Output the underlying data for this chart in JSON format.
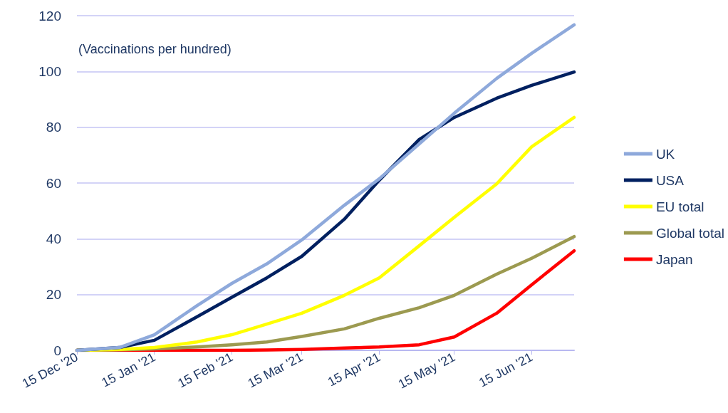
{
  "chart_data": {
    "type": "line",
    "ylabel": "(Vaccinations per hundred)",
    "x": [
      "2020-12-15",
      "2021-01-01",
      "2021-01-15",
      "2021-02-01",
      "2021-02-15",
      "2021-03-01",
      "2021-03-15",
      "2021-04-01",
      "2021-04-15",
      "2021-05-01",
      "2021-05-15",
      "2021-06-01",
      "2021-06-15",
      "2021-07-02"
    ],
    "series": [
      {
        "name": "UK",
        "color": "#8ea9db",
        "values": [
          0,
          1,
          5.6,
          16,
          24,
          31,
          39.6,
          52,
          61.5,
          74,
          85,
          97.5,
          106.5,
          116.7
        ]
      },
      {
        "name": "USA",
        "color": "#002060",
        "values": [
          0,
          1,
          3.6,
          12,
          19,
          26,
          33.7,
          47,
          61,
          75.6,
          83.5,
          90.4,
          95,
          99.8
        ]
      },
      {
        "name": "EU total",
        "color": "#ffff00",
        "values": [
          0,
          0.3,
          1,
          3,
          5.6,
          9.4,
          13.3,
          19.7,
          26,
          37.5,
          47.7,
          59.7,
          73,
          83.5
        ]
      },
      {
        "name": "Global total",
        "color": "#9c9a50",
        "values": [
          0,
          0.2,
          0.5,
          1.2,
          2,
          3,
          5,
          7.7,
          11.5,
          15.3,
          19.7,
          27.3,
          33,
          40.8
        ]
      },
      {
        "name": "Japan",
        "color": "#ff0000",
        "values": [
          0,
          0,
          0,
          0,
          0,
          0.1,
          0.3,
          0.8,
          1.2,
          2,
          4.8,
          13.3,
          23.5,
          35.7
        ]
      }
    ],
    "xlim": [
      "2020-12-15",
      "2021-07-02"
    ],
    "xticks": [
      {
        "value": "2020-12-15",
        "label": "15 Dec '20"
      },
      {
        "value": "2021-01-15",
        "label": "15 Jan '21"
      },
      {
        "value": "2021-02-15",
        "label": "15 Feb '21"
      },
      {
        "value": "2021-03-15",
        "label": "15 Mar '21"
      },
      {
        "value": "2021-04-15",
        "label": "15 Apr '21"
      },
      {
        "value": "2021-05-15",
        "label": "15 May '21"
      },
      {
        "value": "2021-06-15",
        "label": "15 Jun '21"
      }
    ],
    "ylim": [
      0,
      120
    ],
    "yticks": [
      0,
      20,
      40,
      60,
      80,
      100,
      120
    ],
    "grid": "y",
    "legend": "right",
    "marker": "none",
    "line_style": "solid"
  }
}
